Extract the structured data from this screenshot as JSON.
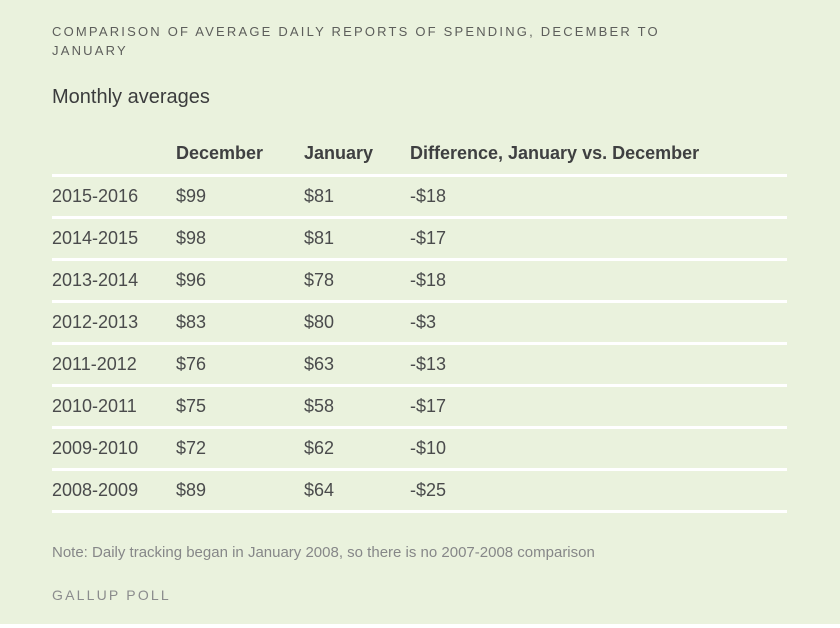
{
  "colors": {
    "background": "#eaf2dd",
    "divider": "#ffffff",
    "title_text": "#5d5e5b",
    "body_text": "#4a4b4c",
    "muted_text": "#868788"
  },
  "header": {
    "title_line1": "COMPARISON OF AVERAGE DAILY REPORTS OF SPENDING, DECEMBER TO",
    "title_line2": "JANUARY",
    "subtitle": "Monthly averages"
  },
  "table": {
    "columns": [
      "",
      "December",
      "January",
      "Difference, January vs. December"
    ],
    "rows": [
      {
        "period": "2015-2016",
        "december": "$99",
        "january": "$81",
        "difference": "-$18"
      },
      {
        "period": "2014-2015",
        "december": "$98",
        "january": "$81",
        "difference": "-$17"
      },
      {
        "period": "2013-2014",
        "december": "$96",
        "january": "$78",
        "difference": "-$18"
      },
      {
        "period": "2012-2013",
        "december": "$83",
        "january": "$80",
        "difference": "-$3"
      },
      {
        "period": "2011-2012",
        "december": "$76",
        "january": "$63",
        "difference": "-$13"
      },
      {
        "period": "2010-2011",
        "december": "$75",
        "january": "$58",
        "difference": "-$17"
      },
      {
        "period": "2009-2010",
        "december": "$72",
        "january": "$62",
        "difference": "-$10"
      },
      {
        "period": "2008-2009",
        "december": "$89",
        "january": "$64",
        "difference": "-$25"
      }
    ]
  },
  "footer": {
    "note": "Note: Daily tracking began in January 2008, so there is no 2007-2008 comparison",
    "source": "GALLUP POLL"
  },
  "chart_data": {
    "type": "table",
    "title": "COMPARISON OF AVERAGE DAILY REPORTS OF SPENDING, DECEMBER TO JANUARY",
    "subtitle": "Monthly averages",
    "categories": [
      "2015-2016",
      "2014-2015",
      "2013-2014",
      "2012-2013",
      "2011-2012",
      "2010-2011",
      "2009-2010",
      "2008-2009"
    ],
    "series": [
      {
        "name": "December",
        "values": [
          99,
          98,
          96,
          83,
          76,
          75,
          72,
          89
        ]
      },
      {
        "name": "January",
        "values": [
          81,
          81,
          78,
          80,
          63,
          58,
          62,
          64
        ]
      },
      {
        "name": "Difference, January vs. December",
        "values": [
          -18,
          -17,
          -18,
          -3,
          -13,
          -17,
          -10,
          -25
        ]
      }
    ],
    "units": "USD per day",
    "note": "Note: Daily tracking began in January 2008, so there is no 2007-2008 comparison",
    "source": "GALLUP POLL"
  }
}
